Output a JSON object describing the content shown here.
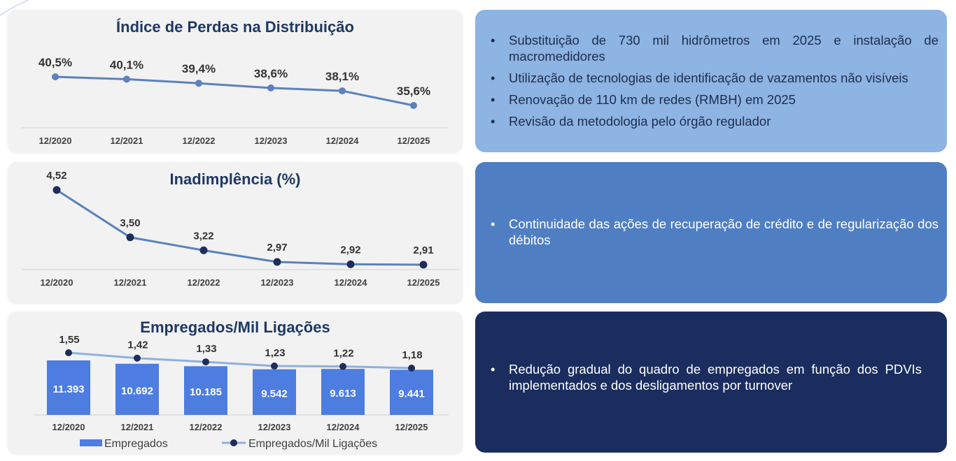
{
  "colors": {
    "line": "#5b82bc",
    "dot_dark": "#1f2d5a",
    "bar": "#4d7de0",
    "text_dark": "#333333",
    "title": "#1f3864",
    "panel1": "#8db4e2",
    "panel2": "#4f7ec3",
    "panel3": "#1a2d5e"
  },
  "charts": [
    {
      "title": "Índice de Perdas na Distribuição",
      "type": "line",
      "categories": [
        "12/2020",
        "12/2021",
        "12/2022",
        "12/2023",
        "12/2024",
        "12/2025"
      ],
      "values": [
        40.5,
        40.1,
        39.4,
        38.6,
        38.1,
        35.6
      ],
      "labels": [
        "40,5%",
        "40,1%",
        "39,4%",
        "38,6%",
        "38,1%",
        "35,6%"
      ]
    },
    {
      "title": "Inadimplência (%)",
      "type": "line",
      "categories": [
        "12/2020",
        "12/2021",
        "12/2022",
        "12/2023",
        "12/2024",
        "12/2025"
      ],
      "values": [
        4.52,
        3.5,
        3.22,
        2.97,
        2.92,
        2.91
      ],
      "labels": [
        "4,52",
        "3,50",
        "3,22",
        "2,97",
        "2,92",
        "2,91"
      ]
    },
    {
      "title": "Empregados/Mil Ligações",
      "type": "bar",
      "categories": [
        "12/2020",
        "12/2021",
        "12/2022",
        "12/2023",
        "12/2024",
        "12/2025"
      ],
      "bar_values": [
        11393,
        10692,
        10185,
        9542,
        9613,
        9441
      ],
      "bar_labels": [
        "11.393",
        "10.692",
        "10.185",
        "9.542",
        "9.613",
        "9.441"
      ],
      "line_values": [
        1.55,
        1.42,
        1.33,
        1.23,
        1.22,
        1.18
      ],
      "line_labels": [
        "1,55",
        "1,42",
        "1,33",
        "1,23",
        "1,22",
        "1,18"
      ],
      "legend": [
        "Empregados",
        "Empregados/Mil Ligações"
      ]
    }
  ],
  "panels": [
    {
      "items": [
        "Substituição de 730 mil hidrômetros em 2025 e instalação de macromedidores",
        "Utilização de tecnologias de identificação de vazamentos não visíveis",
        "Renovação de 110 km de redes (RMBH) em 2025",
        "Revisão da metodologia pelo órgão regulador"
      ]
    },
    {
      "items": [
        "Continuidade das ações de recuperação de crédito e de regularização dos débitos"
      ]
    },
    {
      "items": [
        "Redução gradual do quadro de empregados em função dos PDVIs implementados e dos desligamentos por turnover"
      ]
    }
  ]
}
